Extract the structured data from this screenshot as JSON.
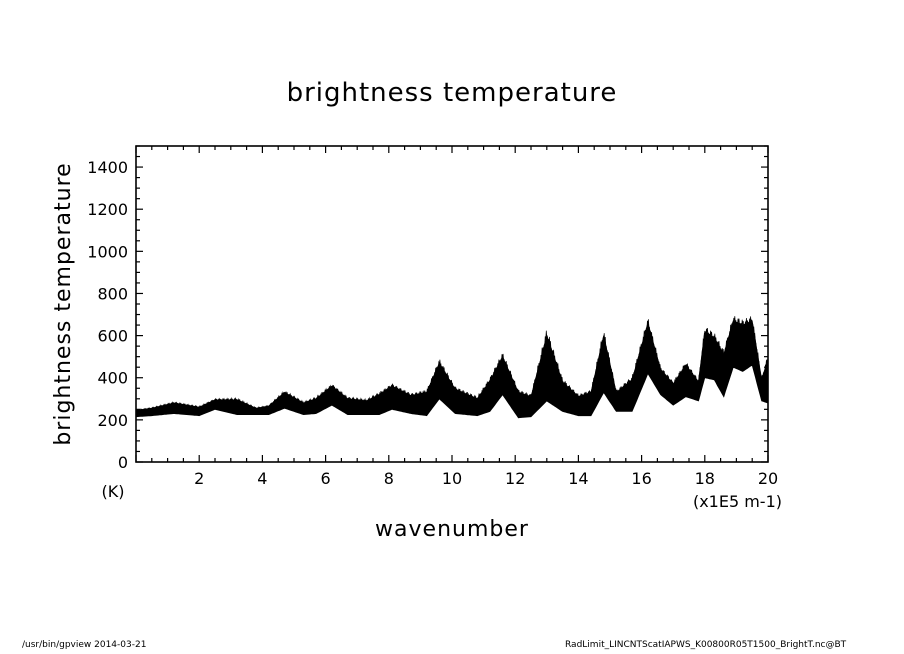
{
  "chart_data": {
    "type": "line",
    "title": "brightness temperature",
    "xlabel": "wavenumber",
    "ylabel": "brightness temperature",
    "x_unit": "(x1E5 m-1)",
    "y_unit": "(K)",
    "xlim": [
      0,
      20
    ],
    "ylim": [
      0,
      1500
    ],
    "x_ticks": [
      "2",
      "4",
      "6",
      "8",
      "10",
      "12",
      "14",
      "16",
      "18",
      "20"
    ],
    "y_ticks": [
      "0",
      "200",
      "400",
      "600",
      "800",
      "1000",
      "1200",
      "1400"
    ],
    "grid": false,
    "series": [
      {
        "color": "#000000",
        "x": [
          0,
          0.5,
          1.2,
          2.0,
          2.5,
          3.2,
          3.8,
          4.2,
          4.7,
          5.3,
          5.7,
          6.2,
          6.7,
          7.3,
          7.7,
          8.1,
          8.7,
          9.2,
          9.6,
          10.1,
          10.8,
          11.2,
          11.6,
          12.1,
          12.5,
          13.0,
          13.5,
          14.0,
          14.4,
          14.8,
          15.2,
          15.7,
          16.2,
          16.6,
          17.0,
          17.4,
          17.8,
          18.0,
          18.3,
          18.6,
          18.9,
          19.2,
          19.5,
          19.8,
          20.0
        ],
        "high": [
          245,
          255,
          280,
          260,
          295,
          295,
          255,
          265,
          330,
          280,
          300,
          360,
          300,
          290,
          320,
          360,
          315,
          330,
          470,
          345,
          300,
          385,
          500,
          330,
          310,
          600,
          380,
          310,
          330,
          600,
          330,
          390,
          660,
          440,
          370,
          460,
          380,
          620,
          590,
          510,
          670,
          650,
          670,
          390,
          490
        ],
        "low": [
          215,
          220,
          230,
          220,
          250,
          225,
          225,
          225,
          255,
          225,
          230,
          270,
          225,
          225,
          225,
          250,
          230,
          220,
          300,
          230,
          220,
          240,
          320,
          210,
          215,
          290,
          240,
          220,
          220,
          330,
          240,
          240,
          420,
          320,
          270,
          310,
          290,
          400,
          390,
          310,
          450,
          430,
          460,
          290,
          280
        ]
      }
    ]
  },
  "footer": {
    "left": "/usr/bin/gpview   2014-03-21",
    "right": "RadLimit_LINCNTScatIAPWS_K00800R05T1500_BrightT.nc@BT"
  }
}
